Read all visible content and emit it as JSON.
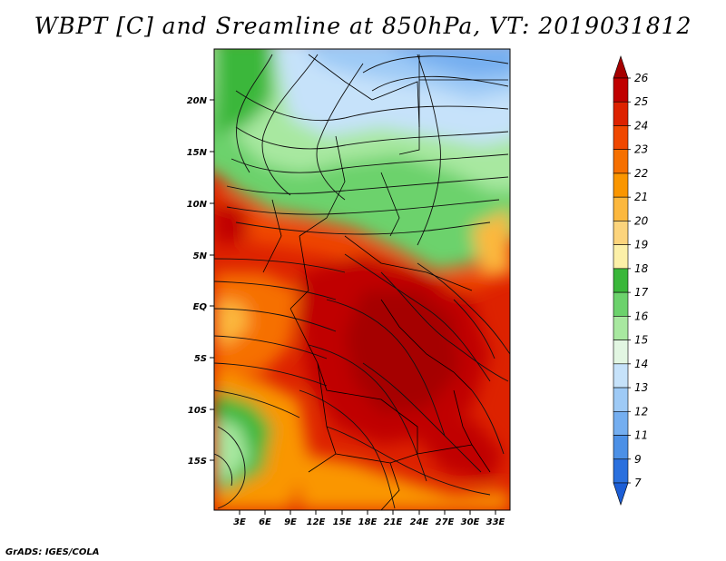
{
  "header": {
    "title": "WBPT [C] and Sreamline at 850hPa, VT: 2019031812"
  },
  "footer": {
    "credit": "GrADS: IGES/COLA"
  },
  "map": {
    "lat_labels": [
      "20N",
      "15N",
      "10N",
      "5N",
      "EQ",
      "5S",
      "10S",
      "15S"
    ],
    "lon_labels": [
      "3E",
      "6E",
      "9E",
      "12E",
      "15E",
      "18E",
      "21E",
      "24E",
      "27E",
      "30E",
      "33E"
    ]
  },
  "colorbar": {
    "levels": [
      "26",
      "25",
      "24",
      "23",
      "22",
      "21",
      "20",
      "19",
      "18",
      "17",
      "16",
      "15",
      "14",
      "13",
      "12",
      "11",
      "9",
      "7"
    ],
    "colors": [
      "#a50000",
      "#c00000",
      "#dd2200",
      "#f04800",
      "#f67000",
      "#fa9600",
      "#fcb83e",
      "#fcd47c",
      "#fcf0a8",
      "#3ab73a",
      "#6cd26c",
      "#a8e8a0",
      "#e2f6e2",
      "#c6e2fa",
      "#9ecaf6",
      "#74aef0",
      "#4c90e6",
      "#2a70de",
      "#1c5ed6"
    ]
  }
}
